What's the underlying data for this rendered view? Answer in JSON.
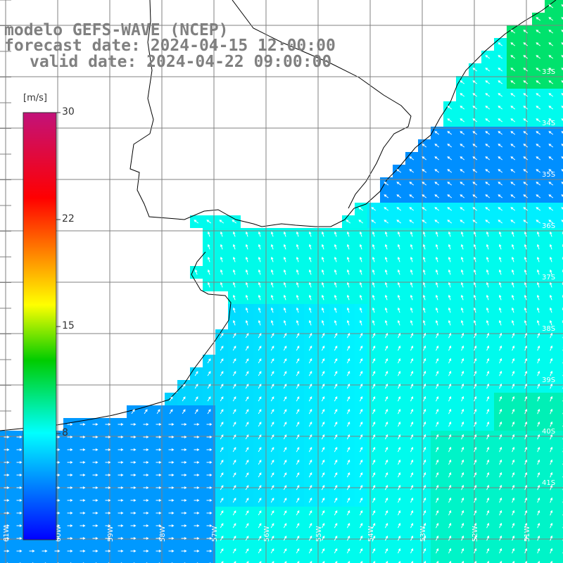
{
  "header": {
    "model": "modelo GEFS-WAVE (NCEP)",
    "forecast": "forecast date: 2024-04-15 12:00:00",
    "valid": "valid date: 2024-04-22 09:00:00"
  },
  "colorbar": {
    "unit": "[m/s]",
    "ticks": [
      "30",
      "22",
      "15",
      "8"
    ],
    "colors": [
      "#c2127a",
      "#ff0000",
      "#ffff00",
      "#00cc00",
      "#00ffff",
      "#0000ff"
    ]
  },
  "grid": {
    "lat_labels": [
      "33S",
      "34S",
      "35S",
      "36S",
      "37S",
      "38S",
      "39S",
      "40S",
      "41S"
    ],
    "lon_labels": [
      "61W",
      "60W",
      "59W",
      "58W",
      "57W",
      "56W",
      "55W",
      "54W",
      "53W",
      "52W",
      "51W"
    ]
  },
  "colors": {
    "land": "#ffffff",
    "coast": "#000000",
    "grid": "#808080",
    "arrow": "#ffffff"
  }
}
